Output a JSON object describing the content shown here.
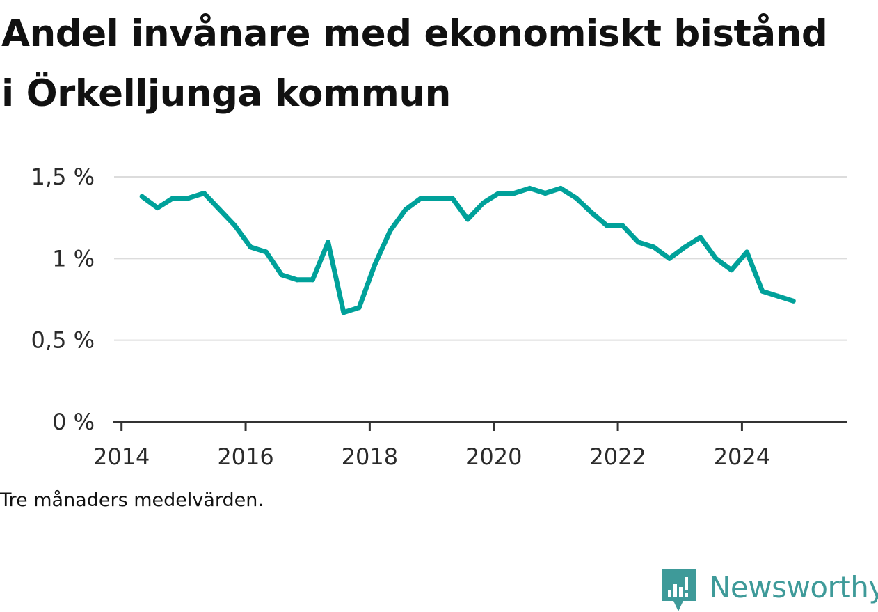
{
  "title": "Andel invånare med ekonomiskt bistånd i Örkelljunga kommun",
  "note": "Tre månaders medelvärden.",
  "brand": {
    "name": "Newsworthy",
    "icon": "newsworthy-logo-icon",
    "color": "#3e9a99"
  },
  "chart_data": {
    "type": "line",
    "title": "Andel invånare med ekonomiskt bistånd i Örkelljunga kommun",
    "xlabel": "",
    "ylabel": "",
    "xlim": [
      2013.88,
      2025.7
    ],
    "ylim": [
      0,
      1.5
    ],
    "grid": true,
    "legend": "none",
    "y_ticks": [
      {
        "value": 0,
        "label": "0 %"
      },
      {
        "value": 0.5,
        "label": "0,5 %"
      },
      {
        "value": 1,
        "label": "1 %"
      },
      {
        "value": 1.5,
        "label": "1,5 %"
      }
    ],
    "x_ticks": [
      {
        "value": 2014,
        "label": "2014"
      },
      {
        "value": 2016,
        "label": "2016"
      },
      {
        "value": 2018,
        "label": "2018"
      },
      {
        "value": 2020,
        "label": "2020"
      },
      {
        "value": 2022,
        "label": "2022"
      },
      {
        "value": 2024,
        "label": "2024"
      }
    ],
    "series": [
      {
        "color": "#00a19a",
        "points": [
          [
            2014.33,
            1.38
          ],
          [
            2014.58,
            1.31
          ],
          [
            2014.83,
            1.37
          ],
          [
            2015.08,
            1.37
          ],
          [
            2015.33,
            1.4
          ],
          [
            2015.58,
            1.3
          ],
          [
            2015.83,
            1.2
          ],
          [
            2016.08,
            1.07
          ],
          [
            2016.33,
            1.04
          ],
          [
            2016.58,
            0.9
          ],
          [
            2016.83,
            0.87
          ],
          [
            2017.08,
            0.87
          ],
          [
            2017.33,
            1.1
          ],
          [
            2017.58,
            0.67
          ],
          [
            2017.83,
            0.7
          ],
          [
            2018.08,
            0.96
          ],
          [
            2018.33,
            1.17
          ],
          [
            2018.58,
            1.3
          ],
          [
            2018.83,
            1.37
          ],
          [
            2019.08,
            1.37
          ],
          [
            2019.33,
            1.37
          ],
          [
            2019.58,
            1.24
          ],
          [
            2019.83,
            1.34
          ],
          [
            2020.08,
            1.4
          ],
          [
            2020.33,
            1.4
          ],
          [
            2020.58,
            1.43
          ],
          [
            2020.83,
            1.4
          ],
          [
            2021.08,
            1.43
          ],
          [
            2021.33,
            1.37
          ],
          [
            2021.58,
            1.28
          ],
          [
            2021.83,
            1.2
          ],
          [
            2022.08,
            1.2
          ],
          [
            2022.33,
            1.1
          ],
          [
            2022.58,
            1.07
          ],
          [
            2022.83,
            1.0
          ],
          [
            2023.08,
            1.07
          ],
          [
            2023.33,
            1.13
          ],
          [
            2023.58,
            1.0
          ],
          [
            2023.83,
            0.93
          ],
          [
            2024.08,
            1.04
          ],
          [
            2024.33,
            0.8
          ],
          [
            2024.58,
            0.77
          ],
          [
            2024.83,
            0.74
          ]
        ]
      }
    ]
  }
}
